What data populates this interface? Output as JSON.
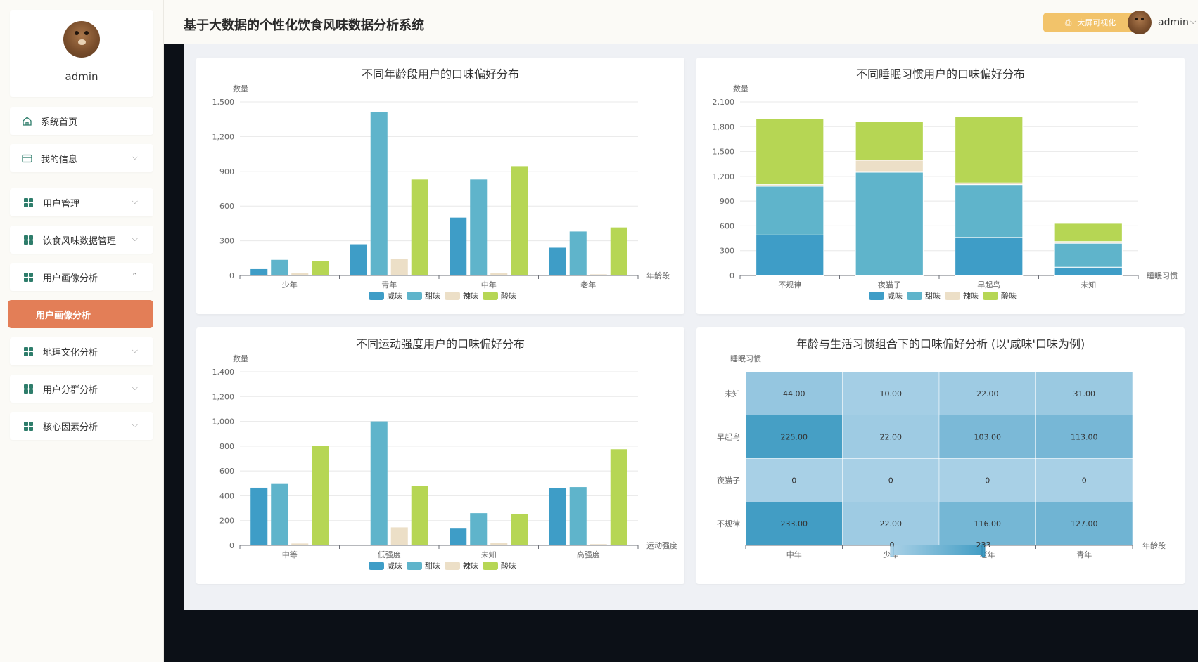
{
  "app": {
    "title": "基于大数据的个性化饮食风味数据分析系统",
    "big_screen_button": "大屏可视化",
    "user": "admin"
  },
  "sidebar": {
    "profile_name": "admin",
    "items": [
      {
        "label": "系统首页",
        "icon": "home-icon"
      },
      {
        "label": "我的信息",
        "icon": "card-icon"
      },
      {
        "label": "用户管理",
        "icon": "grid-icon"
      },
      {
        "label": "饮食风味数据管理",
        "icon": "grid-icon"
      },
      {
        "label": "用户画像分析",
        "icon": "grid-icon"
      },
      {
        "label": "用户画像分析",
        "icon": "chevron-right-icon"
      },
      {
        "label": "地理文化分析",
        "icon": "grid-icon"
      },
      {
        "label": "用户分群分析",
        "icon": "grid-icon"
      },
      {
        "label": "核心因素分析",
        "icon": "grid-icon"
      }
    ]
  },
  "colors": {
    "salty": "#3e9dc7",
    "sweet": "#5fb4cb",
    "spicy": "#ecdfc7",
    "sour": "#b6d654",
    "accent": "#e37e57",
    "button": "#f2c36a"
  },
  "chart_data": [
    {
      "type": "bar",
      "title": "不同年龄段用户的口味偏好分布",
      "ylabel": "数量",
      "xlabel": "年龄段",
      "categories": [
        "少年",
        "青年",
        "中年",
        "老年"
      ],
      "ylim": [
        0,
        1500
      ],
      "yticks": [
        "0",
        "300",
        "600",
        "900",
        "1,200",
        "1,500"
      ],
      "legend": [
        "咸味",
        "甜味",
        "辣味",
        "酸味"
      ],
      "series": [
        {
          "name": "咸味",
          "values": [
            55,
            270,
            500,
            240
          ]
        },
        {
          "name": "甜味",
          "values": [
            135,
            1410,
            830,
            380
          ]
        },
        {
          "name": "辣味",
          "values": [
            20,
            145,
            20,
            10
          ]
        },
        {
          "name": "酸味",
          "values": [
            125,
            830,
            945,
            415
          ]
        }
      ]
    },
    {
      "type": "bar",
      "stacked": true,
      "title": "不同睡眠习惯用户的口味偏好分布",
      "ylabel": "数量",
      "xlabel": "睡眠习惯",
      "categories": [
        "不规律",
        "夜猫子",
        "早起鸟",
        "未知"
      ],
      "ylim": [
        0,
        2100
      ],
      "yticks": [
        "0",
        "300",
        "600",
        "900",
        "1,200",
        "1,500",
        "1,800",
        "2,100"
      ],
      "legend": [
        "咸味",
        "甜味",
        "辣味",
        "酸味"
      ],
      "series": [
        {
          "name": "咸味",
          "values": [
            490,
            0,
            460,
            100
          ]
        },
        {
          "name": "甜味",
          "values": [
            590,
            1250,
            640,
            290
          ]
        },
        {
          "name": "辣味",
          "values": [
            20,
            145,
            20,
            20
          ]
        },
        {
          "name": "酸味",
          "values": [
            800,
            470,
            800,
            220
          ]
        }
      ]
    },
    {
      "type": "bar",
      "title": "不同运动强度用户的口味偏好分布",
      "ylabel": "数量",
      "xlabel": "运动强度",
      "categories": [
        "中等",
        "低强度",
        "未知",
        "高强度"
      ],
      "ylim": [
        0,
        1400
      ],
      "yticks": [
        "0",
        "200",
        "400",
        "600",
        "800",
        "1,000",
        "1,200",
        "1,400"
      ],
      "legend": [
        "咸味",
        "甜味",
        "辣味",
        "酸味"
      ],
      "series": [
        {
          "name": "咸味",
          "values": [
            465,
            0,
            135,
            460
          ]
        },
        {
          "name": "甜味",
          "values": [
            495,
            1000,
            260,
            470
          ]
        },
        {
          "name": "辣味",
          "values": [
            15,
            145,
            20,
            10
          ]
        },
        {
          "name": "酸味",
          "values": [
            800,
            480,
            250,
            775
          ]
        }
      ]
    },
    {
      "type": "heatmap",
      "title": "年龄与生活习惯组合下的口味偏好分析 (以'咸味'口味为例)",
      "ylabel": "睡眠习惯",
      "xlabel": "年龄段",
      "x": [
        "中年",
        "少年",
        "老年",
        "青年"
      ],
      "y": [
        "未知",
        "早起鸟",
        "夜猫子",
        "不规律"
      ],
      "values": [
        [
          "44.00",
          "10.00",
          "22.00",
          "31.00"
        ],
        [
          "225.00",
          "22.00",
          "103.00",
          "113.00"
        ],
        [
          "0",
          "0",
          "0",
          "0"
        ],
        [
          "233.00",
          "22.00",
          "116.00",
          "127.00"
        ]
      ],
      "visual_map": {
        "min": "0",
        "max": "233"
      }
    }
  ]
}
